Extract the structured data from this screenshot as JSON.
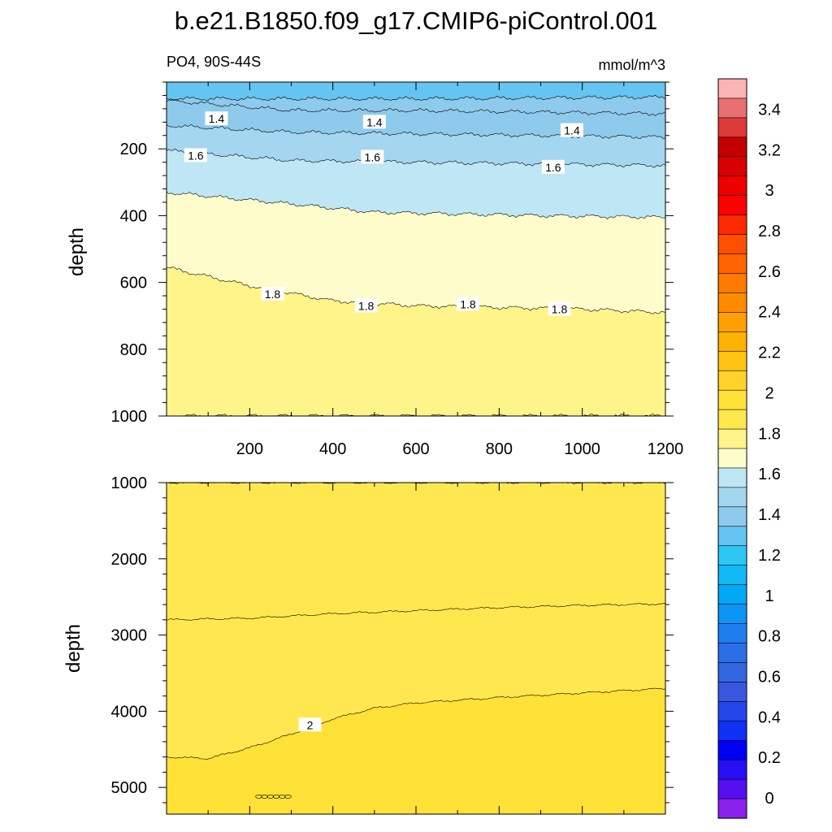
{
  "chart_data": [
    {
      "type": "contour",
      "panel": "upper",
      "title": "b.e21.B1850.f09_g17.CMIP6-piControl.001",
      "left_string": "PO4, 90S-44S",
      "right_string": "mmol/m^3",
      "xlabel": "",
      "ylabel": "depth",
      "xlim": [
        0,
        1200
      ],
      "ylim": [
        1000,
        0
      ],
      "xticks": [
        200,
        400,
        600,
        800,
        1000,
        1200
      ],
      "yticks": [
        200,
        400,
        600,
        800,
        1000
      ],
      "fill_bands": [
        {
          "value": 1.4,
          "boundary_depth": [
            [
              0,
              50
            ],
            [
              600,
              50
            ],
            [
              1200,
              45
            ]
          ]
        },
        {
          "value": 1.45,
          "boundary_depth": [
            [
              0,
              55
            ],
            [
              300,
              85
            ],
            [
              600,
              85
            ],
            [
              900,
              90
            ],
            [
              1200,
              95
            ]
          ]
        },
        {
          "value": 1.5,
          "boundary_depth": [
            [
              0,
              130
            ],
            [
              300,
              150
            ],
            [
              600,
              155
            ],
            [
              900,
              160
            ],
            [
              1200,
              165
            ]
          ]
        },
        {
          "value": 1.6,
          "boundary_depth": [
            [
              0,
              205
            ],
            [
              300,
              235
            ],
            [
              600,
              240
            ],
            [
              900,
              245
            ],
            [
              1200,
              250
            ]
          ]
        },
        {
          "value": 1.7,
          "boundary_depth": [
            [
              0,
              330
            ],
            [
              300,
              365
            ],
            [
              500,
              390
            ],
            [
              700,
              395
            ],
            [
              900,
              400
            ],
            [
              1200,
              405
            ]
          ]
        },
        {
          "value": 1.8,
          "boundary_depth": [
            [
              0,
              555
            ],
            [
              200,
              610
            ],
            [
              400,
              655
            ],
            [
              600,
              670
            ],
            [
              800,
              675
            ],
            [
              1000,
              680
            ],
            [
              1200,
              690
            ]
          ]
        },
        {
          "value": 1.9,
          "boundary_depth": [
            [
              0,
              1000
            ],
            [
              1200,
              1000
            ]
          ]
        }
      ],
      "contour_labels": [
        {
          "text": "1.4",
          "x": 120,
          "y": 110
        },
        {
          "text": "1.4",
          "x": 500,
          "y": 120
        },
        {
          "text": "1.4",
          "x": 975,
          "y": 145
        },
        {
          "text": "1.6",
          "x": 70,
          "y": 220
        },
        {
          "text": "1.6",
          "x": 495,
          "y": 225
        },
        {
          "text": "1.6",
          "x": 930,
          "y": 255
        },
        {
          "text": "1.8",
          "x": 255,
          "y": 635
        },
        {
          "text": "1.8",
          "x": 480,
          "y": 670
        },
        {
          "text": "1.8",
          "x": 725,
          "y": 665
        },
        {
          "text": "1.8",
          "x": 945,
          "y": 680
        }
      ]
    },
    {
      "type": "contour",
      "panel": "lower",
      "ylabel": "depth",
      "xlim": [
        0,
        1200
      ],
      "ylim": [
        5350,
        1000
      ],
      "yticks": [
        1000,
        2000,
        3000,
        4000,
        5000
      ],
      "fill_bands": [
        {
          "value": 1.9,
          "boundary_depth": [
            [
              0,
              1000
            ],
            [
              1200,
              1000
            ]
          ]
        },
        {
          "value": 1.95,
          "boundary_depth": [
            [
              0,
              2800
            ],
            [
              200,
              2780
            ],
            [
              400,
              2720
            ],
            [
              600,
              2680
            ],
            [
              800,
              2640
            ],
            [
              1000,
              2610
            ],
            [
              1200,
              2590
            ]
          ]
        },
        {
          "value": 2.0,
          "boundary_depth": [
            [
              0,
              4600
            ],
            [
              100,
              4620
            ],
            [
              200,
              4480
            ],
            [
              300,
              4300
            ],
            [
              400,
              4100
            ],
            [
              500,
              3960
            ],
            [
              600,
              3890
            ],
            [
              800,
              3820
            ],
            [
              1000,
              3760
            ],
            [
              1200,
              3700
            ]
          ]
        }
      ],
      "contour_labels": [
        {
          "text": "2",
          "x": 345,
          "y": 4180
        }
      ],
      "islands": [
        {
          "x": [
            222,
            295
          ],
          "y": 5120
        }
      ]
    },
    {
      "type": "colorbar",
      "labels": [
        "3.4",
        "3.2",
        "3",
        "2.8",
        "2.6",
        "2.4",
        "2.2",
        "2",
        "1.8",
        "1.6",
        "1.4",
        "1.2",
        "1",
        "0.8",
        "0.6",
        "0.4",
        "0.2",
        "0"
      ],
      "min": -0.1,
      "max": 3.55,
      "step": 0.1,
      "colors_top_to_bottom": [
        "#fab4b4",
        "#e87070",
        "#dd3a3a",
        "#c50000",
        "#d80000",
        "#ee0000",
        "#ff0000",
        "#ff2a00",
        "#ff5000",
        "#ff6400",
        "#ff7a00",
        "#ff8c00",
        "#ffa000",
        "#ffb200",
        "#ffc412",
        "#ffd22a",
        "#ffe138",
        "#ffe84f",
        "#fef48a",
        "#fffccc",
        "#bee6f4",
        "#a4d6ef",
        "#8ecaeb",
        "#64c4f2",
        "#2ec6f5",
        "#10b8f5",
        "#00a8f5",
        "#0c95f5",
        "#1e7ef0",
        "#2a6fe8",
        "#3366e0",
        "#3a58de",
        "#2446ea",
        "#1030f4",
        "#0000f5",
        "#2810f4",
        "#5410f0",
        "#8a20ec"
      ]
    }
  ]
}
